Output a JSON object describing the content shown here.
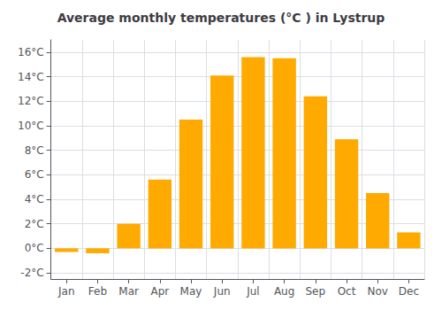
{
  "chart_data": {
    "type": "bar",
    "title": "Average monthly temperatures (°C ) in Lystrup",
    "categories": [
      "Jan",
      "Feb",
      "Mar",
      "Apr",
      "May",
      "Jun",
      "Jul",
      "Aug",
      "Sep",
      "Oct",
      "Nov",
      "Dec"
    ],
    "values": [
      -0.3,
      -0.4,
      2.0,
      5.6,
      10.5,
      14.1,
      15.6,
      15.5,
      12.4,
      8.9,
      4.5,
      1.3
    ],
    "color": "#FFAA00",
    "ylim": [
      -2.5,
      17
    ],
    "yticks": [
      {
        "value": -2,
        "label": "-2°C"
      },
      {
        "value": 0,
        "label": "0°C"
      },
      {
        "value": 2,
        "label": "2°C"
      },
      {
        "value": 4,
        "label": "4°C"
      },
      {
        "value": 6,
        "label": "6°C"
      },
      {
        "value": 8,
        "label": "8°C"
      },
      {
        "value": 10,
        "label": "10°C"
      },
      {
        "value": 12,
        "label": "12°C"
      },
      {
        "value": 14,
        "label": "14°C"
      },
      {
        "value": 16,
        "label": "16°C"
      }
    ],
    "grid": true
  }
}
